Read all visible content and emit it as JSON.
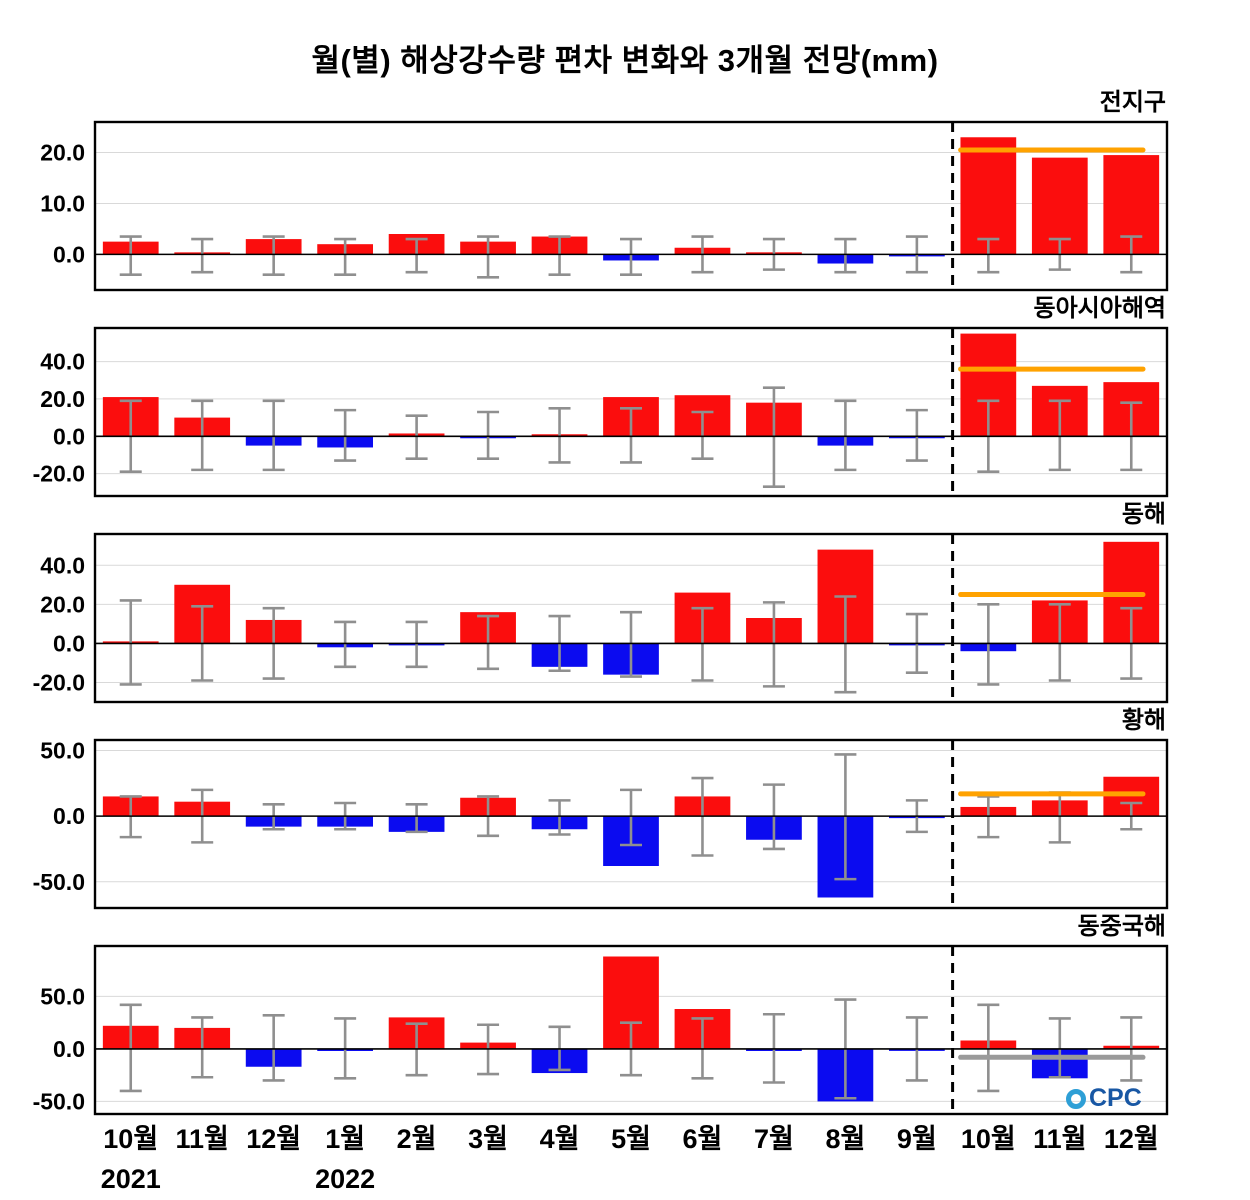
{
  "logo": {
    "text": "CPC"
  },
  "chart_data": {
    "type": "bar",
    "title": "월(별) 해상강수량 편차 변화와 3개월 전망(mm)",
    "xlabel": "",
    "ylabel": "",
    "categories": [
      "10월",
      "11월",
      "12월",
      "1월",
      "2월",
      "3월",
      "4월",
      "5월",
      "6월",
      "7월",
      "8월",
      "9월",
      "10월",
      "11월",
      "12월"
    ],
    "year_labels": [
      {
        "index": 0,
        "label": "2021"
      },
      {
        "index": 3,
        "label": "2022"
      }
    ],
    "forecast_start_index": 12,
    "colors": {
      "positive": "#fb0d0d",
      "negative": "#0b0bf0",
      "error": "#8f8f8f",
      "grid": "#d9d9d9",
      "separator": "#000000",
      "forecast_orange": "#ffa200",
      "forecast_gray": "#9a9a9a"
    },
    "panels": [
      {
        "title": "전지구",
        "ylim": [
          -7,
          26
        ],
        "yticks": [
          0,
          10,
          20
        ],
        "ytick_labels": [
          "0.0",
          "10.0",
          "20.0"
        ],
        "values": [
          2.5,
          0.3,
          3.0,
          2.0,
          4.0,
          2.5,
          3.5,
          -1.2,
          1.3,
          0.4,
          -1.8,
          -0.4,
          23.0,
          19.0,
          19.5
        ],
        "err_low": [
          -4.0,
          -3.5,
          -4.0,
          -4.0,
          -3.5,
          -4.5,
          -4.0,
          -4.0,
          -3.5,
          -3.0,
          -3.5,
          -3.5,
          -3.5,
          -3.0,
          -3.5
        ],
        "err_high": [
          3.5,
          3.0,
          3.5,
          3.0,
          3.0,
          3.5,
          3.5,
          3.0,
          3.5,
          3.0,
          3.0,
          3.5,
          3.0,
          3.0,
          3.5
        ],
        "forecast_line": {
          "value": 20.5,
          "color": "#ffa200"
        }
      },
      {
        "title": "동아시아해역",
        "ylim": [
          -32,
          58
        ],
        "yticks": [
          -20,
          0,
          20,
          40
        ],
        "ytick_labels": [
          "-20.0",
          "0.0",
          "20.0",
          "40.0"
        ],
        "values": [
          21,
          10,
          -5,
          -6,
          1.5,
          -0.5,
          0.5,
          21,
          22,
          18,
          -5,
          -0.5,
          55,
          27,
          29
        ],
        "err_low": [
          -19,
          -18,
          -18,
          -13,
          -12,
          -12,
          -14,
          -14,
          -12,
          -27,
          -18,
          -13,
          -19,
          -18,
          -18
        ],
        "err_high": [
          19,
          19,
          19,
          14,
          11,
          13,
          15,
          15,
          13,
          26,
          19,
          14,
          19,
          19,
          18
        ],
        "forecast_line": {
          "value": 36,
          "color": "#ffa200"
        }
      },
      {
        "title": "동해",
        "ylim": [
          -30,
          56
        ],
        "yticks": [
          -20,
          0,
          20,
          40
        ],
        "ytick_labels": [
          "-20.0",
          "0.0",
          "20.0",
          "40.0"
        ],
        "values": [
          0.5,
          30,
          12,
          -2,
          -1,
          16,
          -12,
          -16,
          26,
          13,
          48,
          -0.5,
          -4,
          22,
          52
        ],
        "err_low": [
          -21,
          -19,
          -18,
          -12,
          -12,
          -13,
          -14,
          -17,
          -19,
          -22,
          -25,
          -15,
          -21,
          -19,
          -18
        ],
        "err_high": [
          22,
          19,
          18,
          11,
          11,
          14,
          14,
          16,
          18,
          21,
          24,
          15,
          20,
          20,
          18
        ],
        "forecast_line": {
          "value": 25,
          "color": "#ffa200"
        }
      },
      {
        "title": "황해",
        "ylim": [
          -70,
          58
        ],
        "yticks": [
          -50,
          0,
          50
        ],
        "ytick_labels": [
          "-50.0",
          "0.0",
          "50.0"
        ],
        "values": [
          15,
          11,
          -8,
          -8,
          -12,
          14,
          -10,
          -38,
          15,
          -18,
          -62,
          -1,
          7,
          12,
          30
        ],
        "err_low": [
          -16,
          -20,
          -10,
          -10,
          -12,
          -15,
          -14,
          -22,
          -30,
          -25,
          -48,
          -12,
          -16,
          -20,
          -10
        ],
        "err_high": [
          15,
          20,
          9,
          10,
          9,
          15,
          12,
          20,
          29,
          24,
          47,
          12,
          15,
          18,
          10
        ],
        "forecast_line": {
          "value": 17,
          "color": "#ffa200"
        }
      },
      {
        "title": "동중국해",
        "ylim": [
          -62,
          98
        ],
        "yticks": [
          -50,
          0,
          50
        ],
        "ytick_labels": [
          "-50.0",
          "0.0",
          "50.0"
        ],
        "values": [
          22,
          20,
          -17,
          -2,
          30,
          6,
          -23,
          88,
          38,
          -2,
          -50,
          -1,
          8,
          -28,
          3
        ],
        "err_low": [
          -40,
          -27,
          -30,
          -28,
          -25,
          -24,
          -20,
          -25,
          -28,
          -32,
          -47,
          -30,
          -40,
          -27,
          -30
        ],
        "err_high": [
          42,
          30,
          32,
          29,
          24,
          23,
          21,
          25,
          29,
          33,
          47,
          30,
          42,
          29,
          30
        ],
        "forecast_line": {
          "value": -8,
          "color": "#9a9a9a"
        }
      }
    ]
  }
}
